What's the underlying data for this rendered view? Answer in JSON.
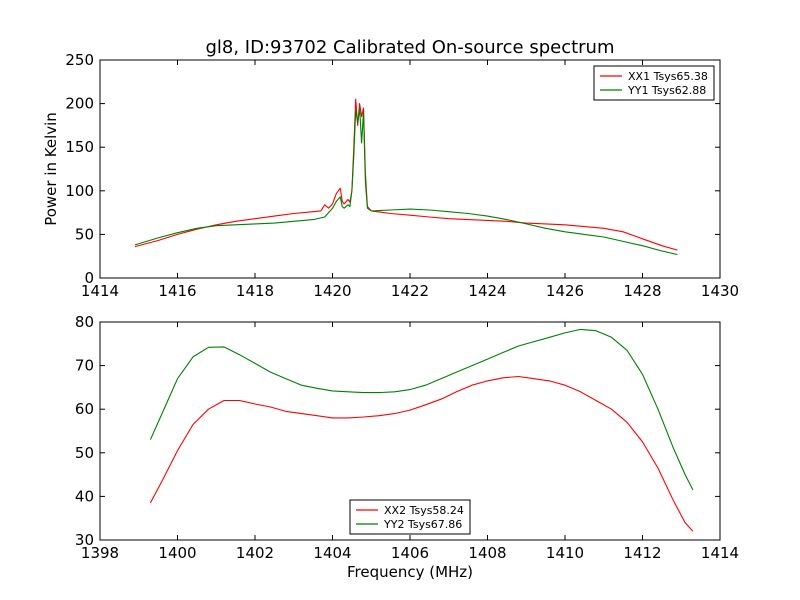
{
  "chart_data": [
    {
      "type": "line",
      "title": "gl8, ID:93702 Calibrated On-source spectrum",
      "xlabel": "",
      "ylabel": "Power in Kelvin",
      "xlim": [
        1414,
        1430
      ],
      "ylim": [
        0,
        250
      ],
      "xticks": [
        "1414",
        "1416",
        "1418",
        "1420",
        "1422",
        "1424",
        "1426",
        "1428",
        "1430"
      ],
      "yticks": [
        "0",
        "50",
        "100",
        "150",
        "200",
        "250"
      ],
      "grid": false,
      "legend": "top-right",
      "series": [
        {
          "name": "XX1 Tsys65.38",
          "color": "#ff0000",
          "points": [
            [
              1414.9,
              36
            ],
            [
              1415.5,
              43
            ],
            [
              1416.0,
              50
            ],
            [
              1416.5,
              56
            ],
            [
              1417.0,
              61
            ],
            [
              1417.5,
              65
            ],
            [
              1418.0,
              68
            ],
            [
              1418.5,
              71
            ],
            [
              1419.0,
              74
            ],
            [
              1419.5,
              76
            ],
            [
              1419.7,
              77
            ],
            [
              1419.8,
              84
            ],
            [
              1419.9,
              80
            ],
            [
              1420.0,
              85
            ],
            [
              1420.1,
              97
            ],
            [
              1420.2,
              103
            ],
            [
              1420.25,
              88
            ],
            [
              1420.3,
              85
            ],
            [
              1420.4,
              90
            ],
            [
              1420.45,
              87
            ],
            [
              1420.5,
              100
            ],
            [
              1420.55,
              150
            ],
            [
              1420.6,
              205
            ],
            [
              1420.65,
              175
            ],
            [
              1420.7,
              200
            ],
            [
              1420.75,
              185
            ],
            [
              1420.8,
              195
            ],
            [
              1420.85,
              120
            ],
            [
              1420.9,
              82
            ],
            [
              1421.0,
              77
            ],
            [
              1421.5,
              74
            ],
            [
              1422.0,
              72
            ],
            [
              1422.5,
              70
            ],
            [
              1423.0,
              68
            ],
            [
              1423.5,
              67
            ],
            [
              1424.0,
              66
            ],
            [
              1424.5,
              65
            ],
            [
              1425.0,
              63
            ],
            [
              1425.5,
              62
            ],
            [
              1426.0,
              61
            ],
            [
              1426.5,
              59
            ],
            [
              1427.0,
              57
            ],
            [
              1427.5,
              53
            ],
            [
              1428.0,
              45
            ],
            [
              1428.5,
              37
            ],
            [
              1428.9,
              32
            ]
          ]
        },
        {
          "name": "YY1 Tsys62.88",
          "color": "#008000",
          "points": [
            [
              1414.9,
              38
            ],
            [
              1415.5,
              46
            ],
            [
              1416.0,
              52
            ],
            [
              1416.5,
              57
            ],
            [
              1417.0,
              60
            ],
            [
              1417.5,
              61
            ],
            [
              1418.0,
              62
            ],
            [
              1418.5,
              63
            ],
            [
              1419.0,
              65
            ],
            [
              1419.5,
              67
            ],
            [
              1419.8,
              70
            ],
            [
              1420.0,
              80
            ],
            [
              1420.1,
              88
            ],
            [
              1420.2,
              93
            ],
            [
              1420.25,
              82
            ],
            [
              1420.3,
              80
            ],
            [
              1420.4,
              84
            ],
            [
              1420.45,
              82
            ],
            [
              1420.5,
              100
            ],
            [
              1420.55,
              140
            ],
            [
              1420.6,
              192
            ],
            [
              1420.65,
              178
            ],
            [
              1420.7,
              195
            ],
            [
              1420.75,
              155
            ],
            [
              1420.8,
              190
            ],
            [
              1420.85,
              110
            ],
            [
              1420.9,
              80
            ],
            [
              1421.0,
              77
            ],
            [
              1421.5,
              78
            ],
            [
              1422.0,
              79
            ],
            [
              1422.5,
              78
            ],
            [
              1423.0,
              76
            ],
            [
              1423.5,
              74
            ],
            [
              1424.0,
              71
            ],
            [
              1424.5,
              67
            ],
            [
              1425.0,
              62
            ],
            [
              1425.5,
              57
            ],
            [
              1426.0,
              53
            ],
            [
              1426.5,
              50
            ],
            [
              1427.0,
              47
            ],
            [
              1427.5,
              42
            ],
            [
              1428.0,
              37
            ],
            [
              1428.5,
              31
            ],
            [
              1428.9,
              27
            ]
          ]
        }
      ]
    },
    {
      "type": "line",
      "title": "",
      "xlabel": "Frequency (MHz)",
      "ylabel": "",
      "xlim": [
        1398,
        1414
      ],
      "ylim": [
        30,
        80
      ],
      "xticks": [
        "1398",
        "1400",
        "1402",
        "1404",
        "1406",
        "1408",
        "1410",
        "1412",
        "1414"
      ],
      "yticks": [
        "30",
        "40",
        "50",
        "60",
        "70",
        "80"
      ],
      "grid": false,
      "legend": "bottom-center",
      "series": [
        {
          "name": "XX2 Tsys58.24",
          "color": "#ff0000",
          "points": [
            [
              1399.3,
              38.5
            ],
            [
              1399.6,
              43.5
            ],
            [
              1400.0,
              50.5
            ],
            [
              1400.4,
              56.5
            ],
            [
              1400.8,
              60
            ],
            [
              1401.2,
              62
            ],
            [
              1401.6,
              62
            ],
            [
              1402.0,
              61.2
            ],
            [
              1402.4,
              60.5
            ],
            [
              1402.8,
              59.5
            ],
            [
              1403.2,
              59
            ],
            [
              1403.6,
              58.5
            ],
            [
              1404.0,
              58
            ],
            [
              1404.4,
              58
            ],
            [
              1404.8,
              58.2
            ],
            [
              1405.2,
              58.5
            ],
            [
              1405.6,
              59
            ],
            [
              1406.0,
              59.8
            ],
            [
              1406.4,
              61
            ],
            [
              1406.8,
              62.3
            ],
            [
              1407.2,
              64
            ],
            [
              1407.6,
              65.5
            ],
            [
              1408.0,
              66.5
            ],
            [
              1408.4,
              67.2
            ],
            [
              1408.8,
              67.5
            ],
            [
              1409.2,
              67
            ],
            [
              1409.6,
              66.5
            ],
            [
              1410.0,
              65.5
            ],
            [
              1410.4,
              64
            ],
            [
              1410.8,
              62
            ],
            [
              1411.2,
              60
            ],
            [
              1411.6,
              57
            ],
            [
              1412.0,
              52.5
            ],
            [
              1412.4,
              46.5
            ],
            [
              1412.8,
              39
            ],
            [
              1413.1,
              34
            ],
            [
              1413.3,
              32
            ]
          ]
        },
        {
          "name": "YY2 Tsys67.86",
          "color": "#008000",
          "points": [
            [
              1399.3,
              53
            ],
            [
              1399.6,
              59
            ],
            [
              1400.0,
              67
            ],
            [
              1400.4,
              72
            ],
            [
              1400.8,
              74.2
            ],
            [
              1401.2,
              74.3
            ],
            [
              1401.6,
              72.5
            ],
            [
              1402.0,
              70.5
            ],
            [
              1402.4,
              68.5
            ],
            [
              1402.8,
              67
            ],
            [
              1403.2,
              65.5
            ],
            [
              1403.6,
              64.8
            ],
            [
              1404.0,
              64.2
            ],
            [
              1404.4,
              64
            ],
            [
              1404.8,
              63.8
            ],
            [
              1405.2,
              63.8
            ],
            [
              1405.6,
              64
            ],
            [
              1406.0,
              64.5
            ],
            [
              1406.4,
              65.5
            ],
            [
              1406.8,
              67
            ],
            [
              1407.2,
              68.5
            ],
            [
              1407.6,
              70
            ],
            [
              1408.0,
              71.5
            ],
            [
              1408.4,
              73
            ],
            [
              1408.8,
              74.5
            ],
            [
              1409.2,
              75.5
            ],
            [
              1409.6,
              76.5
            ],
            [
              1410.0,
              77.5
            ],
            [
              1410.4,
              78.3
            ],
            [
              1410.8,
              78
            ],
            [
              1411.2,
              76.5
            ],
            [
              1411.6,
              73.5
            ],
            [
              1412.0,
              68
            ],
            [
              1412.4,
              60
            ],
            [
              1412.8,
              51
            ],
            [
              1413.1,
              45
            ],
            [
              1413.3,
              41.5
            ]
          ]
        }
      ]
    }
  ]
}
